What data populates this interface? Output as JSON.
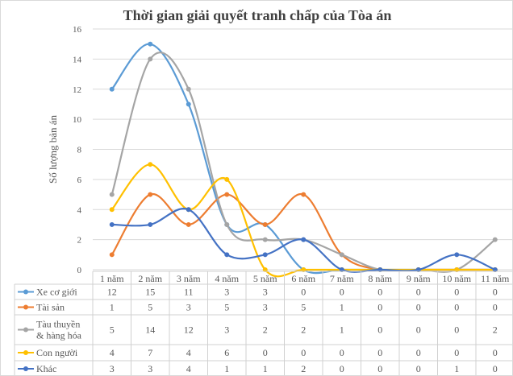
{
  "chart_data": {
    "type": "line",
    "title": "Thời gian giải quyết tranh chấp của Tòa án",
    "xlabel": "",
    "ylabel": "Số lượng bản án",
    "ylim": [
      0,
      16
    ],
    "yticks": [
      0,
      2,
      4,
      6,
      8,
      10,
      12,
      14,
      16
    ],
    "grid": true,
    "legend": "data-table",
    "categories": [
      "1 năm",
      "2 năm",
      "3 năm",
      "4 năm",
      "5 năm",
      "6 năm",
      "7 năm",
      "8 năm",
      "9 năm",
      "10 năm",
      "11 năm"
    ],
    "series": [
      {
        "name": "Xe cơ giới",
        "color": "#5B9BD5",
        "values": [
          12,
          15,
          11,
          3,
          3,
          0,
          0,
          0,
          0,
          0,
          0
        ]
      },
      {
        "name": "Tài sản",
        "color": "#ED7D31",
        "values": [
          1,
          5,
          3,
          5,
          3,
          5,
          1,
          0,
          0,
          0,
          0
        ]
      },
      {
        "name": "Tàu thuyền & hàng hóa",
        "color": "#A5A5A5",
        "values": [
          5,
          14,
          12,
          3,
          2,
          2,
          1,
          0,
          0,
          0,
          2
        ]
      },
      {
        "name": "Con người",
        "color": "#FFC000",
        "values": [
          4,
          7,
          4,
          6,
          0,
          0,
          0,
          0,
          0,
          0,
          0
        ]
      },
      {
        "name": "Khác",
        "color": "#4472C4",
        "values": [
          3,
          3,
          4,
          1,
          1,
          2,
          0,
          0,
          0,
          1,
          0
        ]
      }
    ]
  }
}
